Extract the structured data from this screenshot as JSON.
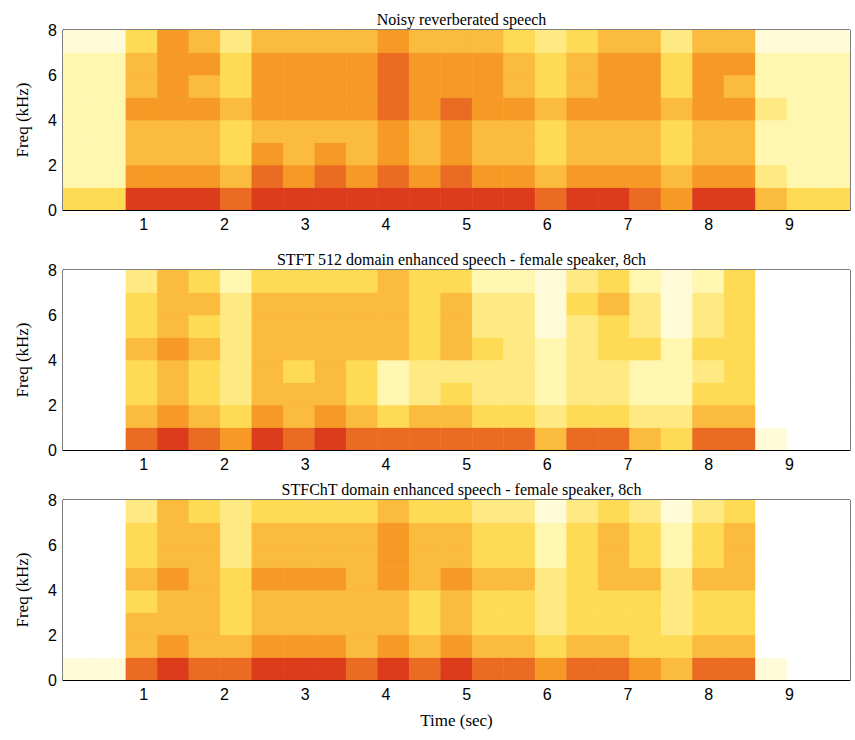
{
  "chart_data": [
    {
      "type": "heatmap",
      "title": "Noisy reverberated speech",
      "ylabel": "Freq (kHz)",
      "xlim": [
        0,
        9.75
      ],
      "ylim": [
        0,
        8
      ],
      "xticks": [
        1,
        2,
        3,
        4,
        5,
        6,
        7,
        8,
        9
      ],
      "yticks": [
        0,
        2,
        4,
        6,
        8
      ],
      "x": [
        0,
        0.39,
        0.78,
        1.17,
        1.56,
        1.95,
        2.34,
        2.73,
        3.12,
        3.51,
        3.9,
        4.29,
        4.68,
        5.07,
        5.46,
        5.85,
        6.24,
        6.63,
        7.02,
        7.41,
        7.8,
        8.19,
        8.58,
        8.97,
        9.36,
        9.75
      ],
      "y": [
        0,
        1,
        2,
        3,
        4,
        5,
        6,
        7,
        8
      ],
      "clim": [
        0,
        10
      ],
      "values": [
        [
          4,
          4,
          8,
          8,
          8,
          7,
          8,
          8,
          8,
          8,
          8,
          8,
          8,
          8,
          8,
          7,
          8,
          8,
          7,
          6,
          8,
          8,
          5,
          4,
          4
        ],
        [
          2,
          2,
          6,
          6,
          6,
          5,
          7,
          6,
          7,
          6,
          7,
          6,
          7,
          6,
          6,
          5,
          6,
          6,
          6,
          5,
          6,
          6,
          3,
          2,
          2
        ],
        [
          2,
          2,
          5,
          5,
          5,
          4,
          6,
          5,
          6,
          5,
          6,
          5,
          6,
          5,
          5,
          4,
          5,
          5,
          5,
          4,
          5,
          5,
          2,
          2,
          2
        ],
        [
          2,
          2,
          5,
          5,
          5,
          4,
          5,
          5,
          5,
          5,
          6,
          5,
          6,
          5,
          5,
          4,
          5,
          5,
          5,
          4,
          5,
          5,
          2,
          2,
          2
        ],
        [
          2,
          2,
          6,
          6,
          6,
          5,
          6,
          6,
          6,
          6,
          7,
          6,
          7,
          6,
          6,
          5,
          6,
          6,
          6,
          5,
          6,
          6,
          3,
          2,
          2
        ],
        [
          2,
          2,
          5,
          6,
          5,
          4,
          6,
          6,
          6,
          6,
          7,
          6,
          6,
          6,
          5,
          4,
          5,
          6,
          6,
          4,
          6,
          5,
          2,
          2,
          2
        ],
        [
          2,
          2,
          5,
          6,
          6,
          4,
          6,
          6,
          6,
          6,
          7,
          6,
          6,
          6,
          5,
          4,
          5,
          6,
          6,
          4,
          6,
          6,
          2,
          2,
          2
        ],
        [
          1,
          1,
          4,
          6,
          5,
          3,
          5,
          5,
          5,
          5,
          6,
          5,
          5,
          5,
          4,
          3,
          4,
          5,
          5,
          3,
          5,
          5,
          1,
          1,
          1
        ]
      ]
    },
    {
      "type": "heatmap",
      "title": "STFT 512 domain enhanced speech - female speaker, 8ch",
      "ylabel": "Freq (kHz)",
      "xlim": [
        0,
        9.75
      ],
      "ylim": [
        0,
        8
      ],
      "xticks": [
        1,
        2,
        3,
        4,
        5,
        6,
        7,
        8,
        9
      ],
      "yticks": [
        0,
        2,
        4,
        6,
        8
      ],
      "x": [
        0,
        0.39,
        0.78,
        1.17,
        1.56,
        1.95,
        2.34,
        2.73,
        3.12,
        3.51,
        3.9,
        4.29,
        4.68,
        5.07,
        5.46,
        5.85,
        6.24,
        6.63,
        7.02,
        7.41,
        7.8,
        8.19,
        8.58,
        8.97,
        9.36,
        9.75
      ],
      "y": [
        0,
        1,
        2,
        3,
        4,
        5,
        6,
        7,
        8
      ],
      "clim": [
        0,
        10
      ],
      "values": [
        [
          0,
          0,
          7,
          8,
          7,
          6,
          8,
          7,
          8,
          7,
          7,
          7,
          7,
          7,
          7,
          5,
          7,
          7,
          5,
          4,
          7,
          7,
          1,
          0,
          0
        ],
        [
          0,
          0,
          5,
          6,
          5,
          4,
          6,
          5,
          6,
          5,
          4,
          5,
          5,
          4,
          4,
          3,
          4,
          4,
          3,
          3,
          5,
          5,
          0,
          0,
          0
        ],
        [
          0,
          0,
          4,
          5,
          4,
          3,
          5,
          5,
          5,
          4,
          2,
          3,
          4,
          3,
          3,
          2,
          3,
          3,
          2,
          2,
          4,
          4,
          0,
          0,
          0
        ],
        [
          0,
          0,
          4,
          5,
          4,
          3,
          5,
          4,
          5,
          4,
          2,
          3,
          3,
          3,
          3,
          2,
          3,
          3,
          2,
          2,
          3,
          4,
          0,
          0,
          0
        ],
        [
          0,
          0,
          5,
          6,
          5,
          3,
          5,
          5,
          5,
          5,
          5,
          4,
          5,
          4,
          3,
          2,
          3,
          4,
          4,
          2,
          4,
          4,
          0,
          0,
          0
        ],
        [
          0,
          0,
          4,
          5,
          4,
          3,
          5,
          5,
          5,
          5,
          5,
          4,
          5,
          3,
          3,
          1,
          3,
          4,
          3,
          1,
          3,
          4,
          0,
          0,
          0
        ],
        [
          0,
          0,
          4,
          5,
          5,
          3,
          5,
          5,
          5,
          5,
          5,
          4,
          5,
          3,
          3,
          1,
          4,
          5,
          3,
          1,
          3,
          4,
          0,
          0,
          0
        ],
        [
          0,
          0,
          3,
          5,
          4,
          2,
          4,
          4,
          4,
          4,
          5,
          4,
          4,
          2,
          2,
          1,
          3,
          4,
          2,
          1,
          2,
          4,
          0,
          0,
          0
        ]
      ]
    },
    {
      "type": "heatmap",
      "title": "STFChT domain enhanced speech - female speaker, 8ch",
      "ylabel": "Freq (kHz)",
      "xlabel": "Time (sec)",
      "xlim": [
        0,
        9.75
      ],
      "ylim": [
        0,
        8
      ],
      "xticks": [
        1,
        2,
        3,
        4,
        5,
        6,
        7,
        8,
        9
      ],
      "yticks": [
        0,
        2,
        4,
        6,
        8
      ],
      "x": [
        0,
        0.39,
        0.78,
        1.17,
        1.56,
        1.95,
        2.34,
        2.73,
        3.12,
        3.51,
        3.9,
        4.29,
        4.68,
        5.07,
        5.46,
        5.85,
        6.24,
        6.63,
        7.02,
        7.41,
        7.8,
        8.19,
        8.58,
        8.97,
        9.36,
        9.75
      ],
      "y": [
        0,
        1,
        2,
        3,
        4,
        5,
        6,
        7,
        8
      ],
      "clim": [
        0,
        10
      ],
      "values": [
        [
          1,
          1,
          7,
          8,
          7,
          7,
          8,
          8,
          8,
          7,
          8,
          7,
          8,
          7,
          7,
          6,
          7,
          7,
          6,
          5,
          7,
          7,
          1,
          0,
          0
        ],
        [
          0,
          0,
          5,
          6,
          5,
          5,
          6,
          6,
          6,
          5,
          6,
          5,
          6,
          5,
          5,
          4,
          5,
          5,
          4,
          4,
          5,
          5,
          0,
          0,
          0
        ],
        [
          0,
          0,
          5,
          5,
          5,
          4,
          5,
          5,
          5,
          5,
          5,
          4,
          5,
          4,
          4,
          3,
          4,
          4,
          4,
          3,
          4,
          4,
          0,
          0,
          0
        ],
        [
          0,
          0,
          4,
          5,
          5,
          4,
          5,
          5,
          5,
          5,
          5,
          4,
          5,
          4,
          4,
          3,
          4,
          4,
          4,
          3,
          4,
          4,
          0,
          0,
          0
        ],
        [
          0,
          0,
          5,
          6,
          5,
          4,
          6,
          6,
          6,
          5,
          6,
          5,
          6,
          5,
          5,
          3,
          4,
          5,
          5,
          3,
          5,
          5,
          0,
          0,
          0
        ],
        [
          0,
          0,
          4,
          5,
          5,
          3,
          5,
          5,
          5,
          5,
          6,
          5,
          5,
          4,
          4,
          2,
          4,
          5,
          4,
          2,
          4,
          5,
          0,
          0,
          0
        ],
        [
          0,
          0,
          4,
          5,
          5,
          3,
          5,
          5,
          5,
          5,
          6,
          5,
          5,
          4,
          4,
          2,
          4,
          5,
          4,
          2,
          4,
          5,
          0,
          0,
          0
        ],
        [
          0,
          0,
          3,
          5,
          4,
          3,
          4,
          4,
          4,
          4,
          5,
          4,
          4,
          3,
          3,
          1,
          3,
          4,
          3,
          1,
          3,
          4,
          0,
          0,
          0
        ]
      ]
    }
  ]
}
